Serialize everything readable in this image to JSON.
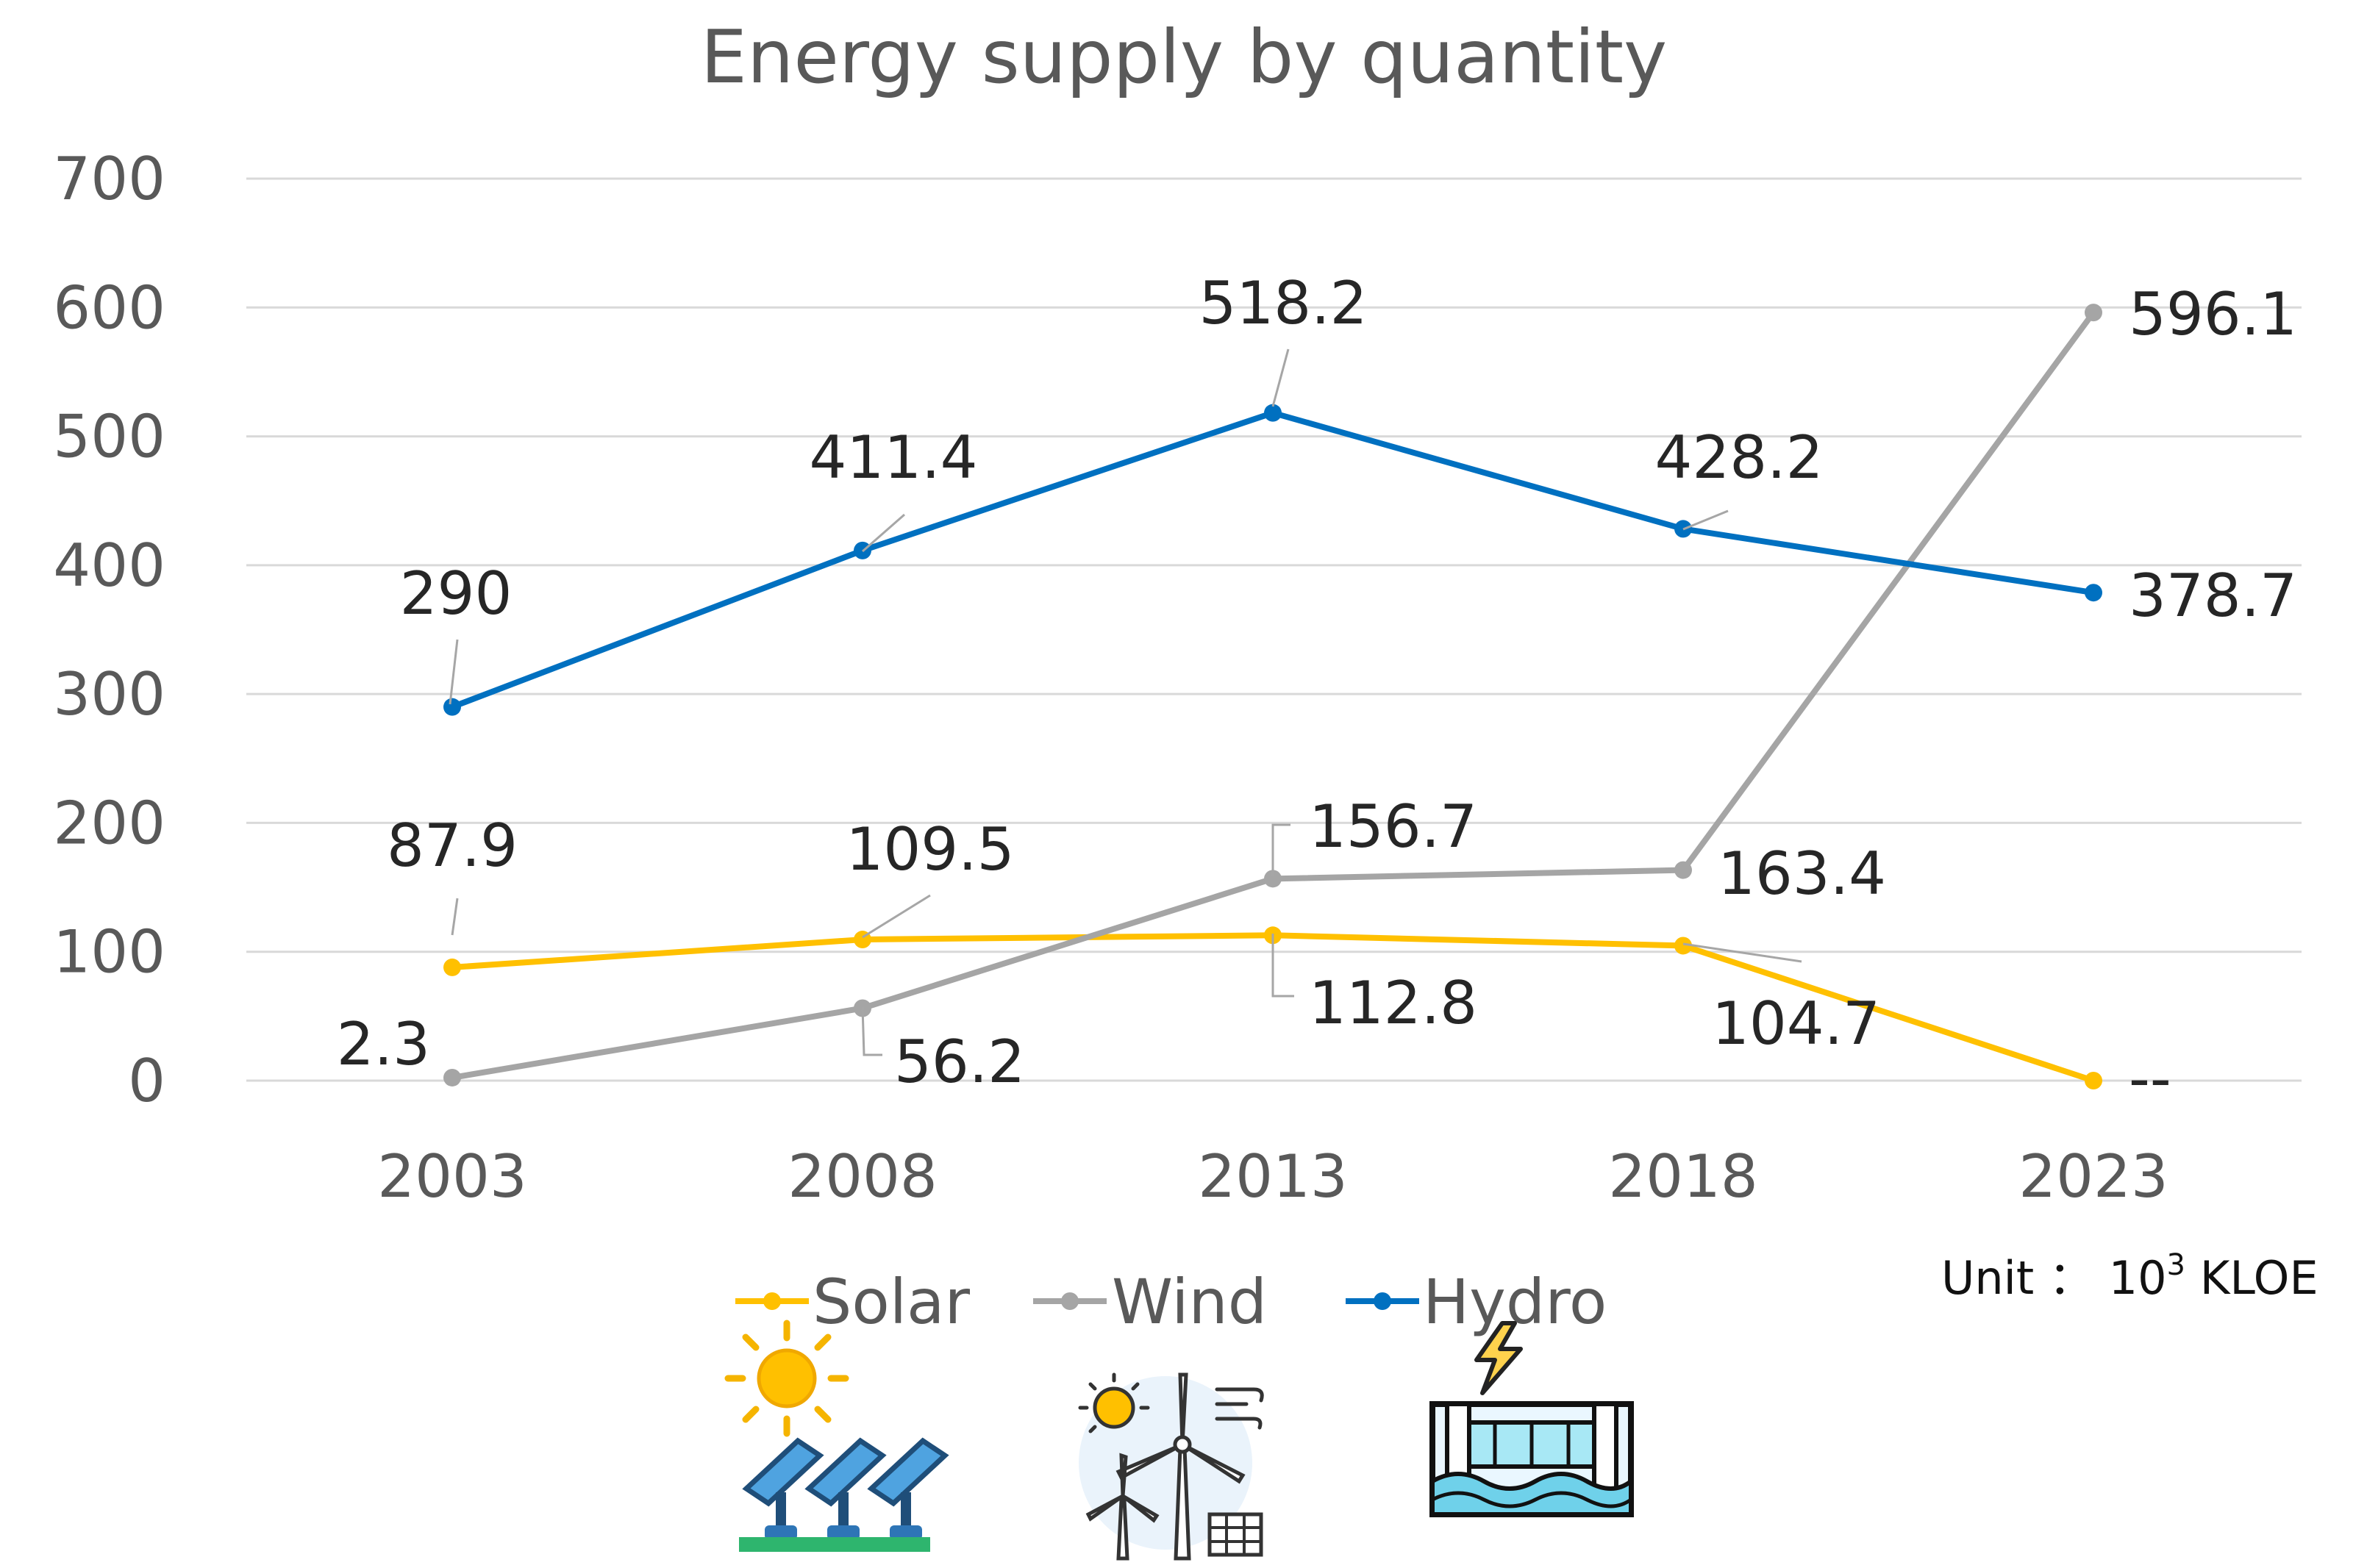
{
  "chart_data": {
    "type": "line",
    "title": "Energy supply by quantity",
    "xlabel": "",
    "ylabel": "",
    "categories": [
      "2003",
      "2008",
      "2013",
      "2018",
      "2023"
    ],
    "ylim": [
      0,
      700
    ],
    "yticks": [
      0,
      100,
      200,
      300,
      400,
      500,
      600,
      700
    ],
    "ytick_labels": [
      "0",
      "100",
      "200",
      "300",
      "400",
      "500",
      "600",
      "700"
    ],
    "grid": true,
    "legend_position": "bottom",
    "series": [
      {
        "name": "Solar",
        "color": "#FFC000",
        "values": [
          87.9,
          109.5,
          112.8,
          104.7,
          0
        ],
        "labels": [
          "87.9",
          "109.5",
          "112.8",
          "104.7",
          "--"
        ]
      },
      {
        "name": "Wind",
        "color": "#A5A5A5",
        "values": [
          2.3,
          56.2,
          156.7,
          163.4,
          596.1
        ],
        "labels": [
          "2.3",
          "56.2",
          "156.7",
          "163.4",
          "596.1"
        ]
      },
      {
        "name": "Hydro",
        "color": "#0070C0",
        "values": [
          290,
          411.4,
          518.2,
          428.2,
          378.7
        ],
        "labels": [
          "290",
          "411.4",
          "518.2",
          "428.2",
          "378.7"
        ]
      }
    ],
    "unit": {
      "prefix": "Unit ： 10",
      "superscript": "3",
      "suffix": " KLOE"
    },
    "icons": [
      "solar-panel-icon",
      "wind-turbine-icon",
      "hydro-dam-icon"
    ]
  }
}
